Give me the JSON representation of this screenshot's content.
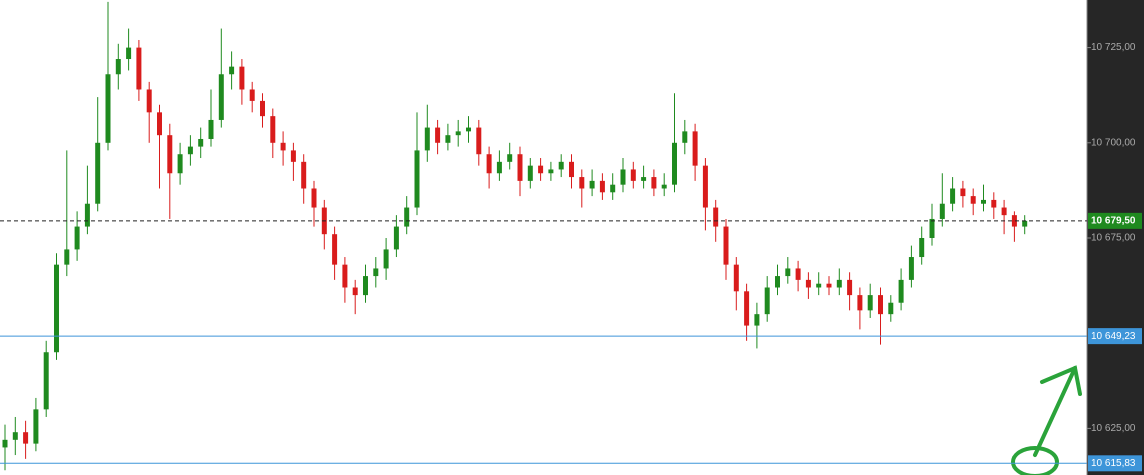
{
  "chart_data": {
    "type": "candlestick",
    "open": [
      10620,
      10622,
      10624,
      10621,
      10630,
      10645,
      10668,
      10672,
      10678,
      10684,
      10700,
      10718,
      10722,
      10725,
      10714,
      10708,
      10702,
      10692,
      10697,
      10699,
      10701,
      10706,
      10718,
      10720,
      10714,
      10711,
      10707,
      10700,
      10698,
      10695,
      10688,
      10683,
      10676,
      10668,
      10662,
      10660,
      10665,
      10667,
      10672,
      10678,
      10683,
      10698,
      10704,
      10700,
      10702,
      10703,
      10704,
      10697,
      10692,
      10695,
      10697,
      10690,
      10694,
      10692,
      10693,
      10695,
      10691,
      10688,
      10690,
      10687,
      10689,
      10693,
      10690,
      10691,
      10688,
      10689,
      10700,
      10703,
      10694,
      10683,
      10678,
      10668,
      10661,
      10652,
      10655,
      10662,
      10665,
      10667,
      10664,
      10662,
      10663,
      10662,
      10664,
      10660,
      10656,
      10660,
      10655,
      10658,
      10664,
      10670,
      10675,
      10680,
      10684,
      10688,
      10686,
      10684,
      10685,
      10683,
      10681,
      10678
    ],
    "high": [
      10626,
      10628,
      10627,
      10633,
      10648,
      10671,
      10698,
      10682,
      10694,
      10712,
      10737,
      10726,
      10730,
      10727,
      10716,
      10710,
      10705,
      10700,
      10702,
      10704,
      10714,
      10730,
      10724,
      10722,
      10716,
      10713,
      10709,
      10703,
      10700,
      10697,
      10690,
      10685,
      10678,
      10670,
      10664,
      10668,
      10670,
      10675,
      10681,
      10686,
      10708,
      10710,
      10706,
      10705,
      10706,
      10707,
      10706,
      10699,
      10698,
      10700,
      10699,
      10696,
      10696,
      10695,
      10697,
      10697,
      10693,
      10693,
      10692,
      10692,
      10696,
      10695,
      10694,
      10693,
      10692,
      10713,
      10706,
      10705,
      10696,
      10685,
      10680,
      10670,
      10663,
      10658,
      10665,
      10668,
      10670,
      10669,
      10666,
      10666,
      10665,
      10667,
      10666,
      10662,
      10663,
      10662,
      10660,
      10667,
      10673,
      10678,
      10684,
      10692,
      10691,
      10690,
      10688,
      10689,
      10687,
      10685,
      10682,
      10681
    ],
    "low": [
      10614,
      10618,
      10617,
      10619,
      10628,
      10643,
      10665,
      10669,
      10676,
      10682,
      10698,
      10714,
      10719,
      10711,
      10700,
      10688,
      10680,
      10689,
      10694,
      10696,
      10699,
      10704,
      10714,
      10710,
      10708,
      10704,
      10696,
      10694,
      10690,
      10684,
      10678,
      10672,
      10664,
      10658,
      10655,
      10658,
      10662,
      10664,
      10670,
      10676,
      10681,
      10695,
      10697,
      10698,
      10699,
      10700,
      10694,
      10688,
      10690,
      10693,
      10686,
      10688,
      10690,
      10690,
      10691,
      10688,
      10683,
      10686,
      10685,
      10685,
      10687,
      10688,
      10688,
      10686,
      10686,
      10687,
      10697,
      10690,
      10677,
      10674,
      10664,
      10656,
      10648,
      10646,
      10653,
      10660,
      10663,
      10661,
      10659,
      10660,
      10660,
      10660,
      10656,
      10651,
      10654,
      10647,
      10653,
      10656,
      10662,
      10668,
      10673,
      10678,
      10682,
      10683,
      10681,
      10682,
      10680,
      10676,
      10674,
      10676
    ],
    "close": [
      10622,
      10624,
      10621,
      10630,
      10645,
      10668,
      10672,
      10678,
      10684,
      10700,
      10718,
      10722,
      10725,
      10714,
      10708,
      10702,
      10692,
      10697,
      10699,
      10701,
      10706,
      10718,
      10720,
      10714,
      10711,
      10707,
      10700,
      10698,
      10695,
      10688,
      10683,
      10676,
      10668,
      10662,
      10660,
      10665,
      10667,
      10672,
      10678,
      10683,
      10698,
      10704,
      10700,
      10702,
      10703,
      10704,
      10697,
      10692,
      10695,
      10697,
      10690,
      10694,
      10692,
      10693,
      10695,
      10691,
      10688,
      10690,
      10687,
      10689,
      10693,
      10690,
      10691,
      10688,
      10689,
      10700,
      10703,
      10694,
      10683,
      10678,
      10668,
      10661,
      10652,
      10655,
      10662,
      10665,
      10667,
      10664,
      10662,
      10663,
      10662,
      10664,
      10660,
      10656,
      10660,
      10655,
      10658,
      10664,
      10670,
      10675,
      10680,
      10684,
      10688,
      10686,
      10684,
      10685,
      10683,
      10681,
      10678,
      10679.5
    ],
    "up_color": "#1f8a1f",
    "down_color": "#d91c1c",
    "ylim": [
      10612.76,
      10737.5
    ],
    "yticks": [
      {
        "value": 10625,
        "label": "10 625,00"
      },
      {
        "value": 10675,
        "label": "10 675,00"
      },
      {
        "value": 10700,
        "label": "10 700,00"
      },
      {
        "value": 10725,
        "label": "10 725,00"
      }
    ],
    "levels": [
      {
        "value": 10649.23,
        "label": "10 649,23",
        "color": "#3d95d9"
      },
      {
        "value": 10615.83,
        "label": "10 615,83",
        "color": "#3d95d9"
      }
    ],
    "last_price": {
      "value": 10679.5,
      "label": "10 679,50",
      "color": "#1f8a1f"
    }
  }
}
